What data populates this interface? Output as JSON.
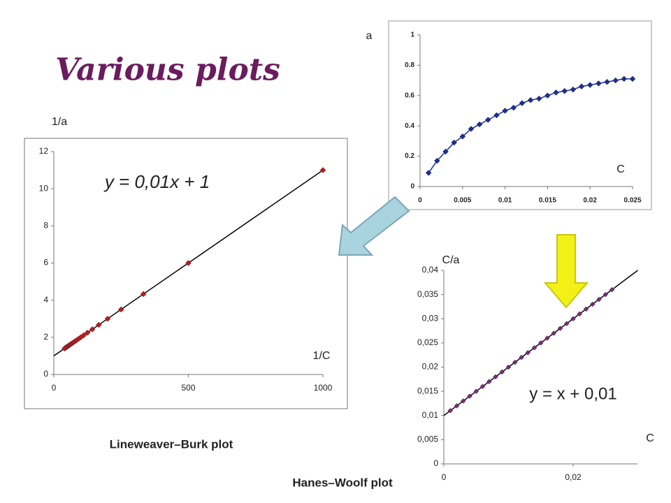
{
  "title": "Various plots",
  "chart_data": [
    {
      "type": "scatter",
      "connect": true,
      "color": "#1c2d99",
      "line_color": "#1c2d99",
      "x_label": "C",
      "y_label": "a",
      "x": [
        0.001,
        0.002,
        0.003,
        0.004,
        0.005,
        0.006,
        0.007,
        0.008,
        0.009,
        0.01,
        0.011,
        0.012,
        0.013,
        0.014,
        0.015,
        0.016,
        0.017,
        0.018,
        0.019,
        0.02,
        0.021,
        0.022,
        0.023,
        0.024,
        0.025
      ],
      "values": [
        0.09,
        0.17,
        0.23,
        0.29,
        0.33,
        0.38,
        0.41,
        0.44,
        0.47,
        0.5,
        0.52,
        0.55,
        0.57,
        0.58,
        0.6,
        0.62,
        0.63,
        0.64,
        0.66,
        0.67,
        0.68,
        0.69,
        0.7,
        0.71,
        0.71
      ],
      "xlim": [
        0,
        0.025
      ],
      "xticks": [
        0,
        0.005,
        0.01,
        0.015,
        0.02,
        0.025
      ],
      "ylim": [
        0,
        1
      ],
      "yticks": [
        0,
        0.2,
        0.4,
        0.6,
        0.8,
        1
      ]
    },
    {
      "type": "scatter",
      "color": "#c8141c",
      "line_color": "#000000",
      "x_label": "1/C",
      "y_label": "1/a",
      "equation": "y = 0,01x + 1",
      "caption": "Lineweaver–Burk plot",
      "trendline": {
        "slope": 0.01,
        "intercept": 1
      },
      "x": [
        1000,
        500,
        333,
        250,
        200,
        167,
        143,
        125,
        111,
        100,
        91,
        83,
        77,
        71,
        67,
        63,
        59,
        56,
        53,
        50,
        48,
        45,
        43,
        42,
        40
      ],
      "values": [
        11,
        6,
        4.33,
        3.5,
        3,
        2.67,
        2.43,
        2.25,
        2.11,
        2,
        1.91,
        1.83,
        1.77,
        1.71,
        1.67,
        1.63,
        1.59,
        1.56,
        1.53,
        1.5,
        1.48,
        1.45,
        1.43,
        1.42,
        1.4
      ],
      "xlim": [
        0,
        1000
      ],
      "xticks": [
        0,
        500,
        1000
      ],
      "ylim": [
        0,
        12
      ],
      "yticks": [
        0,
        2,
        4,
        6,
        8,
        10,
        12
      ]
    },
    {
      "type": "scatter",
      "color": "#7b2a7b",
      "line_color": "#000000",
      "x_label": "C",
      "y_label": "C/a",
      "equation": "y = x + 0,01",
      "caption": "Hanes–Woolf plot",
      "trendline": {
        "slope": 1,
        "intercept": 0.01
      },
      "x": [
        0.001,
        0.002,
        0.003,
        0.004,
        0.005,
        0.006,
        0.007,
        0.008,
        0.009,
        0.01,
        0.011,
        0.012,
        0.013,
        0.014,
        0.015,
        0.016,
        0.017,
        0.018,
        0.019,
        0.02,
        0.021,
        0.022,
        0.023,
        0.024,
        0.025,
        0.026
      ],
      "values": [
        0.011,
        0.012,
        0.013,
        0.014,
        0.015,
        0.016,
        0.017,
        0.018,
        0.019,
        0.02,
        0.021,
        0.022,
        0.023,
        0.024,
        0.025,
        0.026,
        0.027,
        0.028,
        0.029,
        0.03,
        0.031,
        0.032,
        0.033,
        0.034,
        0.035,
        0.036
      ],
      "xlim": [
        0,
        0.03
      ],
      "xticks": [
        0,
        {
          "value": 0.02,
          "label": "0,02"
        }
      ],
      "ylim": [
        0,
        0.04
      ],
      "yticks": [
        0,
        {
          "value": 0.005,
          "label": "0,005"
        },
        {
          "value": 0.01,
          "label": "0,01"
        },
        {
          "value": 0.015,
          "label": "0,015"
        },
        {
          "value": 0.02,
          "label": "0,02"
        },
        {
          "value": 0.025,
          "label": "0,025"
        },
        {
          "value": 0.03,
          "label": "0,03"
        },
        {
          "value": 0.035,
          "label": "0,035"
        },
        {
          "value": 0.04,
          "label": "0,04"
        }
      ]
    }
  ]
}
